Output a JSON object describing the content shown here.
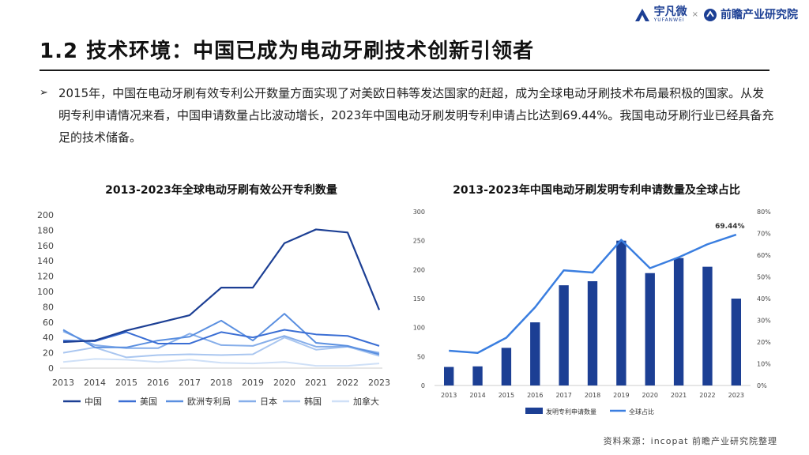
{
  "header": {
    "logo1": "宇凡微",
    "logo1_sub": "YUFANWEI",
    "separator": "×",
    "logo2": "前瞻产业研究院"
  },
  "title": "1.2 技术环境：中国已成为电动牙刷技术创新引领者",
  "bullet": {
    "arrow": "➢",
    "text": "2015年，中国在电动牙刷有效专利公开数量方面实现了对美欧日韩等发达国家的赶超，成为全球电动牙刷技术布局最积极的国家。从发明专利申请情况来看，中国申请数量占比波动增长，2023年中国电动牙刷发明专利申请占比达到69.44%。我国电动牙刷行业已经具备充足的技术储备。"
  },
  "source": "资料来源：incopat 前瞻产业研究院整理",
  "colors": {
    "china": "#1c3f94",
    "usa": "#3a6ed4",
    "eu": "#5a8fe0",
    "japan": "#86aeea",
    "korea": "#a9c6f0",
    "canada": "#cfe0f7",
    "bar": "#1c3f94",
    "share": "#3a7ee0"
  },
  "chart_data": [
    {
      "type": "line",
      "title": "2013-2023年全球电动牙刷有效公开专利数量",
      "x": [
        "2013",
        "2014",
        "2015",
        "2016",
        "2017",
        "2018",
        "2019",
        "2020",
        "2021",
        "2022",
        "2023"
      ],
      "ylim": [
        0,
        200
      ],
      "yticks": [
        "0",
        "20",
        "40",
        "60",
        "80",
        "100",
        "120",
        "140",
        "160",
        "180",
        "200"
      ],
      "legend_position": "bottom",
      "series": [
        {
          "name": "中国",
          "values": [
            34,
            36,
            49,
            59,
            69,
            105,
            105,
            163,
            181,
            177,
            76
          ]
        },
        {
          "name": "美国",
          "values": [
            36,
            35,
            47,
            32,
            32,
            47,
            40,
            50,
            44,
            42,
            29
          ]
        },
        {
          "name": "欧洲专利局",
          "values": [
            50,
            27,
            27,
            36,
            41,
            62,
            36,
            71,
            33,
            29,
            18
          ]
        },
        {
          "name": "日本",
          "values": [
            48,
            30,
            26,
            26,
            45,
            30,
            29,
            42,
            28,
            28,
            20
          ]
        },
        {
          "name": "韩国",
          "values": [
            20,
            27,
            14,
            17,
            18,
            17,
            18,
            40,
            24,
            28,
            16
          ]
        },
        {
          "name": "加拿大",
          "values": [
            8,
            12,
            11,
            8,
            11,
            7,
            6,
            8,
            3,
            3,
            6
          ]
        }
      ]
    },
    {
      "type": "bar",
      "title": "2013-2023年中国电动牙刷发明专利申请数量及全球占比",
      "categories": [
        "2013",
        "2014",
        "2015",
        "2016",
        "2017",
        "2018",
        "2019",
        "2020",
        "2021",
        "2022",
        "2023"
      ],
      "ylim": [
        0,
        300
      ],
      "yticks": [
        "0",
        "50",
        "100",
        "150",
        "200",
        "250",
        "300"
      ],
      "y2lim": [
        0,
        80
      ],
      "y2ticks": [
        "0%",
        "10%",
        "20%",
        "30%",
        "40%",
        "50%",
        "60%",
        "70%",
        "80%"
      ],
      "legend_position": "bottom",
      "annotation": "69.44%",
      "series": [
        {
          "name": "发明专利申请数量",
          "type": "bar",
          "values": [
            32,
            33,
            65,
            109,
            173,
            180,
            250,
            194,
            220,
            205,
            150
          ]
        },
        {
          "name": "全球占比",
          "type": "line",
          "axis": "right",
          "values": [
            16,
            15,
            22,
            36,
            53,
            52,
            67,
            54,
            59,
            65,
            69.44
          ]
        }
      ]
    }
  ]
}
